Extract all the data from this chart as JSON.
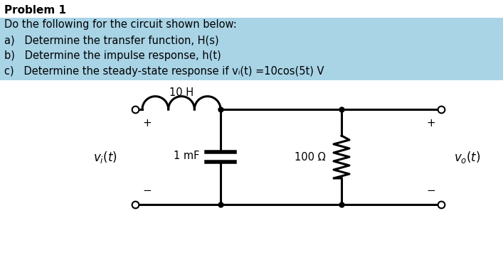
{
  "title": "Problem 1",
  "line1": "Do the following for the circuit shown below:",
  "line_a": "a)   Determine the transfer function, H(s)",
  "line_b": "b)   Determine the impulse response, h(t)",
  "line_c": "c)   Determine the steady-state response if vᵢ(t) =10cos(5t) V",
  "highlight_color": "#a8d4e6",
  "background_color": "#ffffff",
  "text_color": "#000000",
  "circuit": {
    "inductor_label": "10 H",
    "cap_label": "1 mF",
    "res_label": "100 Ω",
    "vi_label": "v_i(t)",
    "vo_label": "v_o(t)"
  },
  "layout": {
    "fig_w": 7.07,
    "fig_h": 3.76,
    "dpi": 100
  }
}
